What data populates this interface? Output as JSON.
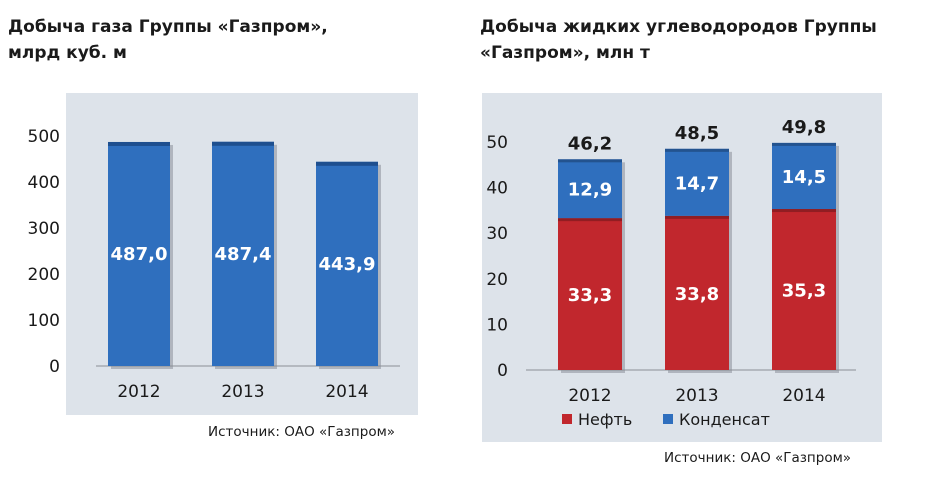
{
  "chart_data": [
    {
      "type": "bar",
      "title_lines": [
        "Добыча газа Группы «Газпром»,",
        "млрд куб. м"
      ],
      "categories": [
        "2012",
        "2013",
        "2014"
      ],
      "values": [
        487.0,
        487.4,
        443.9
      ],
      "value_labels": [
        "487,0",
        "487,4",
        "443,9"
      ],
      "yticks": [
        "0",
        "100",
        "200",
        "300",
        "400",
        "500"
      ],
      "ylim": [
        0,
        500
      ],
      "grid": false,
      "colors": {
        "bar": "#2f6fbe",
        "bar_top": "#1e4f8f",
        "panel": "#dde3ea"
      },
      "source": "Источник: ОАО «Газпром»"
    },
    {
      "type": "bar",
      "stacked": true,
      "title_lines": [
        "Добыча жидких углеводородов Группы",
        "«Газпром», млн т"
      ],
      "categories": [
        "2012",
        "2013",
        "2014"
      ],
      "series": [
        {
          "name": "Нефть",
          "values": [
            33.3,
            33.8,
            35.3
          ],
          "labels": [
            "33,3",
            "33,8",
            "35,3"
          ],
          "color": "#c1272d"
        },
        {
          "name": "Конденсат",
          "values": [
            12.9,
            14.7,
            14.5
          ],
          "labels": [
            "12,9",
            "14,7",
            "14,5"
          ],
          "color": "#2f6fbe"
        }
      ],
      "totals": [
        "46,2",
        "48,5",
        "49,8"
      ],
      "total_values": [
        46.2,
        48.5,
        49.8
      ],
      "yticks": [
        "0",
        "10",
        "20",
        "30",
        "40",
        "50"
      ],
      "ylim": [
        0,
        50
      ],
      "grid": false,
      "legend_position": "bottom",
      "colors": {
        "panel": "#dde3ea"
      },
      "source": "Источник: ОАО «Газпром»"
    }
  ]
}
